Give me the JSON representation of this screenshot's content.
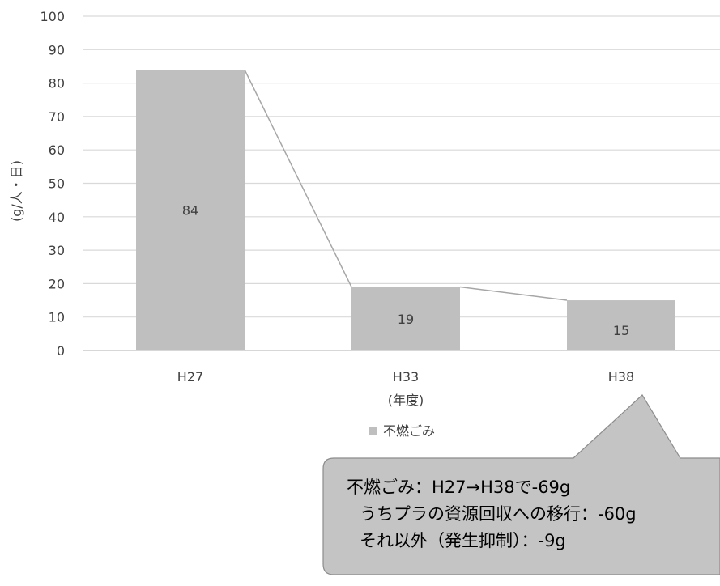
{
  "chart_data": {
    "type": "bar",
    "categories": [
      "H27",
      "H33",
      "H38"
    ],
    "series": [
      {
        "name": "不燃ごみ",
        "values": [
          84,
          19,
          15
        ]
      }
    ],
    "data_labels": [
      "84",
      "19",
      "15"
    ],
    "xlabel": "(年度)",
    "ylabel": "(g/人・日)",
    "ylim": [
      0,
      100
    ],
    "yticks": [
      0,
      10,
      20,
      30,
      40,
      50,
      60,
      70,
      80,
      90,
      100
    ],
    "grid": true,
    "legend": "bottom",
    "series_lines": true,
    "colors": {
      "bar": "#bfbfbf",
      "grid": "#d9d9d9",
      "axis": "#bfbfbf",
      "connector": "#a6a6a6",
      "callout_fill": "#c4c4c4",
      "callout_border": "#8c8c8c"
    }
  },
  "callout": {
    "lines": [
      "不燃ごみ：H27→H38で-69g",
      "うちプラの資源回収への移行：-60g",
      "それ以外（発生抑制）：-9g"
    ]
  }
}
